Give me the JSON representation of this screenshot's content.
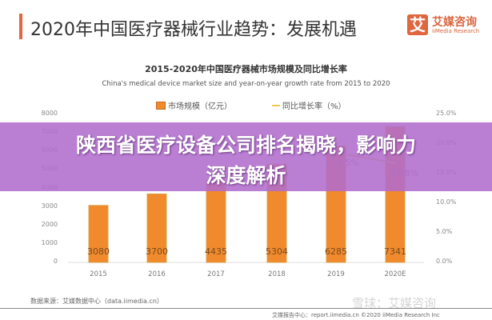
{
  "header": {
    "title": "2020年中国医疗器械行业趋势：发展机遇",
    "logo_mark": "艾",
    "logo_name": "艾媒咨询",
    "logo_sub": "iiMedia Research"
  },
  "chart_data": {
    "type": "bar+line",
    "title": "2015-2020年中国医疗器械市场规模及同比增长率",
    "subtitle": "China's medical device market size and year-on-year growth rate from  2015 to 2020",
    "categories": [
      "2015",
      "2016",
      "2017",
      "2018",
      "2019",
      "2020E"
    ],
    "series": [
      {
        "name": "市场规模（亿元）",
        "type": "bar",
        "axis": "left",
        "values": [
          3080,
          3700,
          4435,
          5304,
          6285,
          7341
        ],
        "color": "#f08a2c"
      },
      {
        "name": "同比增长率（%）",
        "type": "line",
        "axis": "right",
        "values": [
          null,
          null,
          null,
          null,
          18.5,
          16.8
        ],
        "labels": [
          "",
          "",
          "",
          "",
          "18.5%",
          "16.8%"
        ],
        "color": "#f3c94b"
      }
    ],
    "left_axis": {
      "ticks": [
        "0",
        "1000",
        "2000",
        "3000",
        "4000",
        "5000",
        "6000",
        "7000",
        "8000"
      ],
      "ylim": [
        0,
        8000
      ]
    },
    "right_axis": {
      "ticks": [
        "0.0%",
        "5.0%",
        "10.0%",
        "15.0%",
        "20.0%",
        "25.0%"
      ],
      "ylim": [
        0,
        25
      ]
    },
    "legend": "top-center"
  },
  "footer": {
    "source": "数据来源：艾媒数据中心（data.iimedia.cn）",
    "report": "艾媒报告中心：report.iimedia.cn  ©2020  iiMedia Research Inc",
    "watermark": "雪球：艾媒咨询"
  },
  "overlay": {
    "line1": "陕西省医疗设备公司排名揭晓，影响力",
    "line2": "深度解析",
    "color": "#b06ccd"
  }
}
